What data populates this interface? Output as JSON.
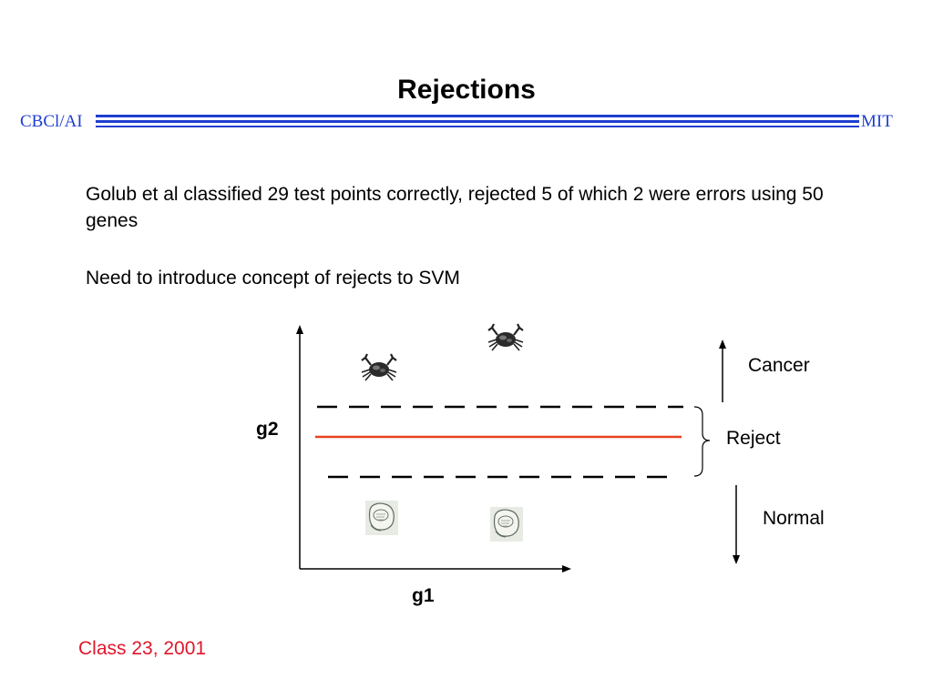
{
  "header": {
    "title": "Rejections",
    "left_label": "CBCl/AI",
    "right_label": "MIT",
    "accent_color": "#1f3fcf"
  },
  "body": {
    "paragraph1": "Golub et al classified 29 test points correctly, rejected 5 of which 2 were errors using 50 genes",
    "paragraph2": "Need to introduce concept of rejects to SVM"
  },
  "diagram": {
    "y_axis_label": "g2",
    "x_axis_label": "g1",
    "region_labels": {
      "cancer": "Cancer",
      "reject": "Reject",
      "normal": "Normal"
    },
    "icons": {
      "cancer_points": "crab-icon",
      "normal_points": "normal-cell-icon"
    },
    "colors": {
      "decision_boundary": "#e8401c",
      "margin_lines": "#000000"
    }
  },
  "footer": {
    "text": "Class 23,  2001",
    "color": "#e0162b"
  }
}
